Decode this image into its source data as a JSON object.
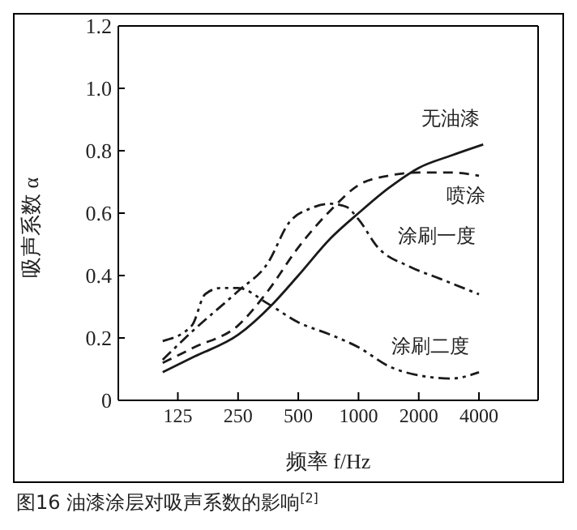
{
  "chart_data": {
    "type": "line",
    "xlabel": "频率 f/Hz",
    "ylabel": "吸声系数 α",
    "log": "x",
    "xlim": [
      63,
      7900
    ],
    "xticks": [
      125,
      250,
      500,
      1000,
      2000,
      4000
    ],
    "ylim": [
      0,
      1.2
    ],
    "yticks": [
      0,
      0.2,
      0.4,
      0.6,
      0.8,
      {
        "value": 1,
        "label": "1.0"
      },
      1.2
    ],
    "marker": "none",
    "annotations": [
      "图16 油漆涂层对吸声系数的影响$^{[2]}$"
    ],
    "series": [
      {
        "name": "无油漆",
        "color": "#1a1a1a",
        "line_style": "solid",
        "x": [
          105,
          151,
          250,
          374,
          500,
          727,
          1000,
          1412,
          2000,
          2918,
          4200
        ],
        "values": [
          0.09,
          0.14,
          0.21,
          0.31,
          0.4,
          0.52,
          0.6,
          0.68,
          0.745,
          0.785,
          0.82
        ]
      },
      {
        "name": "喷涂",
        "color": "#1a1a1a",
        "line_style": "dashed",
        "x": [
          105,
          151,
          250,
          352,
          500,
          727,
          1000,
          1412,
          2000,
          2918,
          4000
        ],
        "values": [
          0.12,
          0.17,
          0.24,
          0.35,
          0.49,
          0.61,
          0.69,
          0.72,
          0.73,
          0.73,
          0.72
        ]
      },
      {
        "name": "涂刷一度",
        "color": "#1a1a1a",
        "line_style": "dashdot",
        "x": [
          105,
          147,
          250,
          352,
          450,
          575,
          727,
          870,
          1000,
          1250,
          1780,
          2550,
          4000
        ],
        "values": [
          0.13,
          0.22,
          0.35,
          0.44,
          0.57,
          0.615,
          0.63,
          0.62,
          0.58,
          0.49,
          0.43,
          0.39,
          0.34
        ]
      },
      {
        "name": "涂刷二度",
        "color": "#1a1a1a",
        "line_style": "dashdotdot",
        "x": [
          105,
          147,
          171,
          205,
          250,
          352,
          500,
          727,
          1000,
          1412,
          2000,
          2918,
          4000
        ],
        "values": [
          0.19,
          0.24,
          0.34,
          0.36,
          0.36,
          0.31,
          0.25,
          0.21,
          0.17,
          0.11,
          0.08,
          0.07,
          0.09
        ]
      }
    ]
  }
}
